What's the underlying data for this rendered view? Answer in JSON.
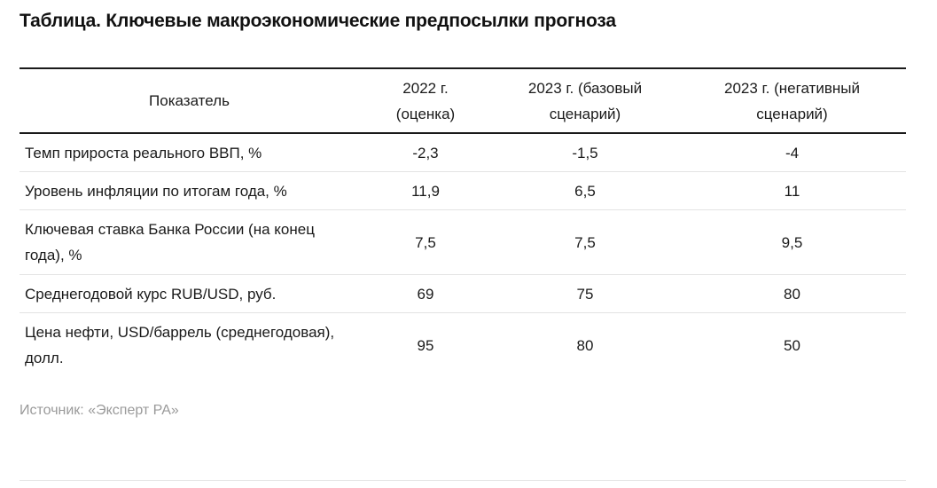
{
  "title": "Таблица. Ключевые макроэкономические предпосылки прогноза",
  "table": {
    "headers": [
      [
        "Показатель"
      ],
      [
        "2022 г.",
        "(оценка)"
      ],
      [
        "2023 г. (базовый",
        "сценарий)"
      ],
      [
        "2023 г. (негативный",
        "сценарий)"
      ]
    ],
    "rows": [
      {
        "label": [
          "Темп прироста реального ВВП, %"
        ],
        "values": [
          "-2,3",
          "-1,5",
          "-4"
        ]
      },
      {
        "label": [
          "Уровень инфляции по итогам года, %"
        ],
        "values": [
          "11,9",
          "6,5",
          "11"
        ]
      },
      {
        "label": [
          "Ключевая ставка Банка России (на конец",
          "года), %"
        ],
        "values": [
          "7,5",
          "7,5",
          "9,5"
        ]
      },
      {
        "label": [
          "Среднегодовой курс RUB/USD, руб."
        ],
        "values": [
          "69",
          "75",
          "80"
        ]
      },
      {
        "label": [
          "Цена нефти, USD/баррель (среднегодовая),",
          "долл."
        ],
        "values": [
          "95",
          "80",
          "50"
        ]
      }
    ]
  },
  "source": "Источник: «Эксперт РА»"
}
